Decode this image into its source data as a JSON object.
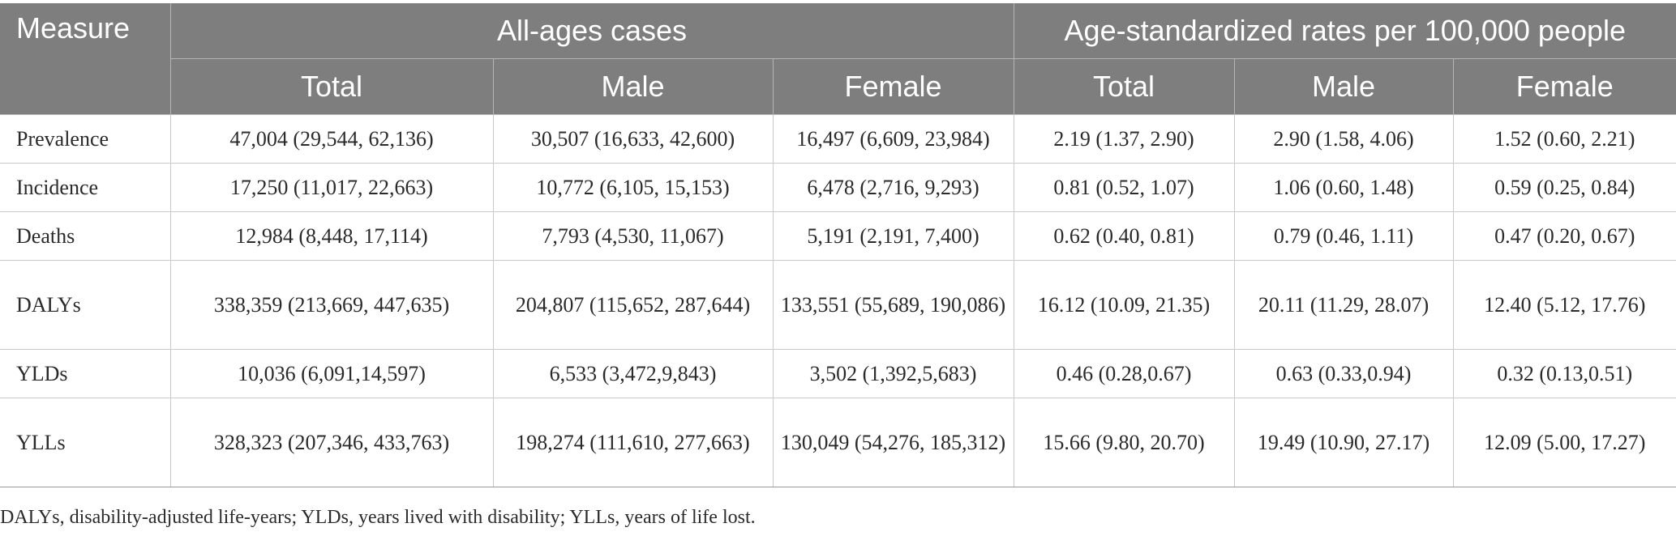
{
  "table": {
    "header": {
      "measure": "Measure",
      "group_all_ages": "All-ages cases",
      "group_age_std": "Age-standardized rates per 100,000 people",
      "sub_headers": [
        "Total",
        "Male",
        "Female",
        "Total",
        "Male",
        "Female"
      ]
    },
    "rows": [
      {
        "measure": "Prevalence",
        "values": [
          "47,004 (29,544, 62,136)",
          "30,507 (16,633, 42,600)",
          "16,497 (6,609, 23,984)",
          "2.19 (1.37, 2.90)",
          "2.90 (1.58, 4.06)",
          "1.52 (0.60, 2.21)"
        ]
      },
      {
        "measure": "Incidence",
        "values": [
          "17,250 (11,017, 22,663)",
          "10,772 (6,105, 15,153)",
          "6,478 (2,716, 9,293)",
          "0.81 (0.52, 1.07)",
          "1.06 (0.60, 1.48)",
          "0.59 (0.25, 0.84)"
        ]
      },
      {
        "measure": "Deaths",
        "values": [
          "12,984 (8,448, 17,114)",
          "7,793 (4,530, 11,067)",
          "5,191 (2,191, 7,400)",
          "0.62 (0.40, 0.81)",
          "0.79 (0.46, 1.11)",
          "0.47 (0.20, 0.67)"
        ]
      },
      {
        "measure": "DALYs",
        "values": [
          "338,359 (213,669, 447,635)",
          "204,807 (115,652, 287,644)",
          "133,551 (55,689, 190,086)",
          "16.12 (10.09, 21.35)",
          "20.11 (11.29, 28.07)",
          "12.40 (5.12, 17.76)"
        ]
      },
      {
        "measure": "YLDs",
        "values": [
          "10,036 (6,091,14,597)",
          "6,533 (3,472,9,843)",
          "3,502 (1,392,5,683)",
          "0.46 (0.28,0.67)",
          "0.63 (0.33,0.94)",
          "0.32 (0.13,0.51)"
        ]
      },
      {
        "measure": "YLLs",
        "values": [
          "328,323 (207,346, 433,763)",
          "198,274 (111,610, 277,663)",
          "130,049 (54,276, 185,312)",
          "15.66 (9.80, 20.70)",
          "19.49 (10.90, 27.17)",
          "12.09 (5.00, 17.27)"
        ]
      }
    ]
  },
  "footnote": "DALYs, disability-adjusted life-years; YLDs, years lived with disability; YLLs, years of life lost."
}
